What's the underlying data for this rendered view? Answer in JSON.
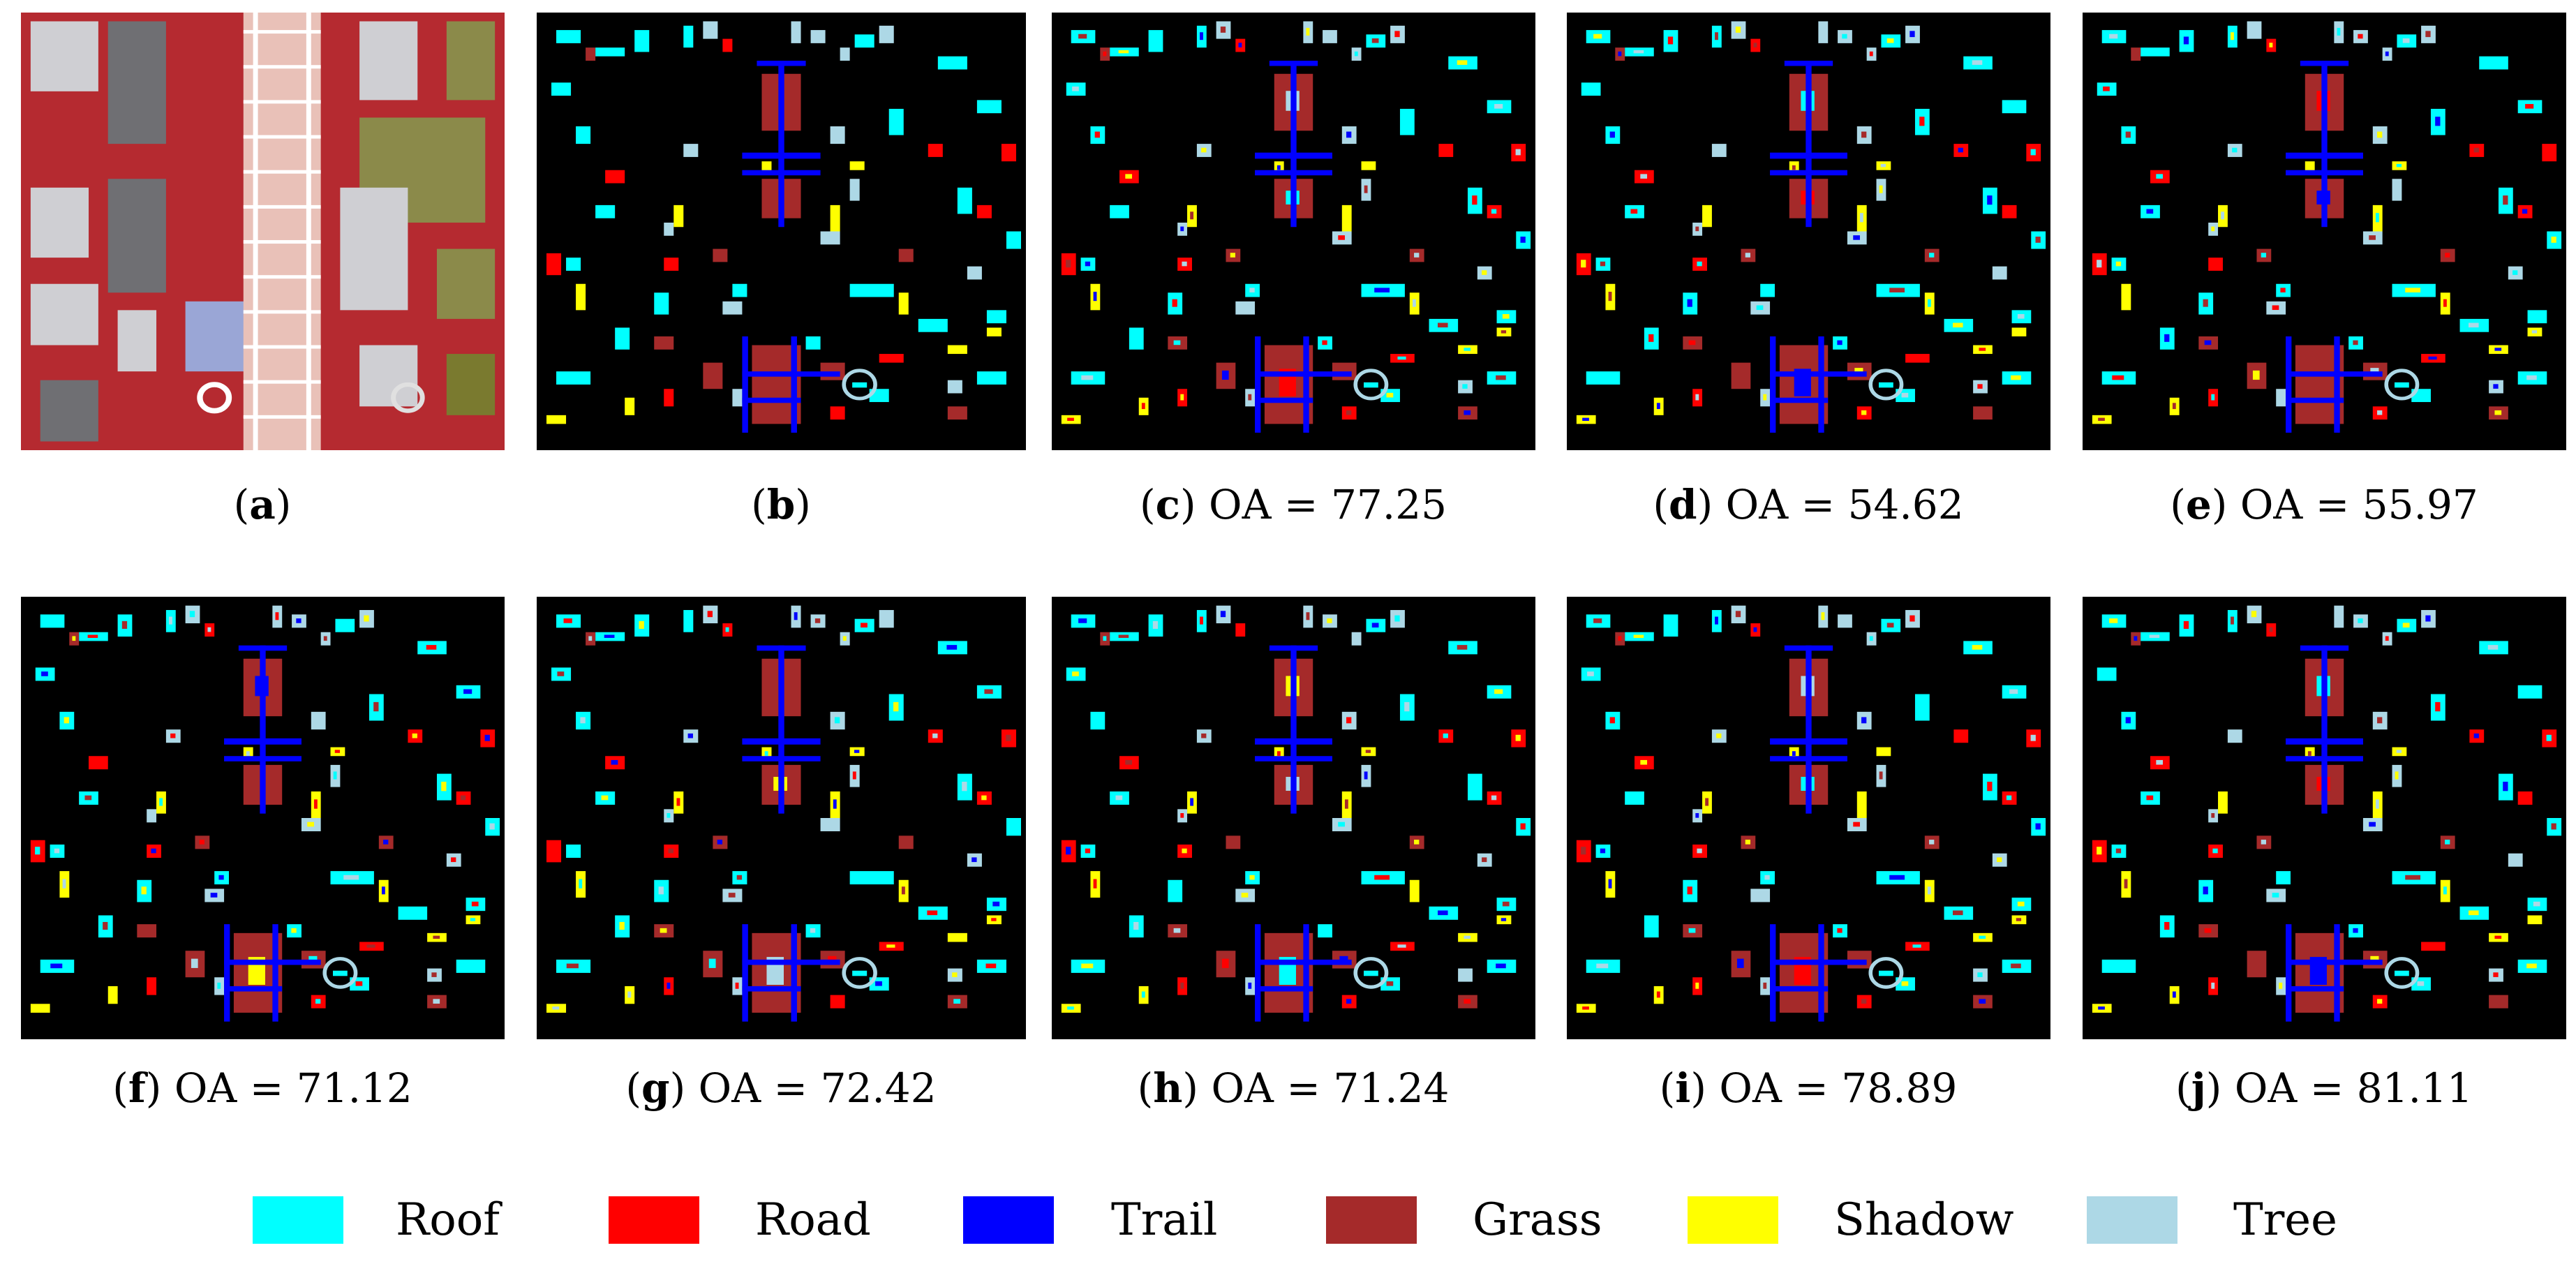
{
  "panels": [
    {
      "key": "a",
      "caption_letter": "a",
      "caption_text": "",
      "kind": "image"
    },
    {
      "key": "b",
      "caption_letter": "b",
      "caption_text": "",
      "kind": "map"
    },
    {
      "key": "c",
      "caption_letter": "c",
      "caption_text": "OA = 77.25",
      "kind": "map"
    },
    {
      "key": "d",
      "caption_letter": "d",
      "caption_text": "OA = 54.62",
      "kind": "map"
    },
    {
      "key": "e",
      "caption_letter": "e",
      "caption_text": "OA = 55.97",
      "kind": "map"
    },
    {
      "key": "f",
      "caption_letter": "f",
      "caption_text": "OA = 71.12",
      "kind": "map"
    },
    {
      "key": "g",
      "caption_letter": "g",
      "caption_text": "OA = 72.42",
      "kind": "map"
    },
    {
      "key": "h",
      "caption_letter": "h",
      "caption_text": "OA = 71.24",
      "kind": "map"
    },
    {
      "key": "i",
      "caption_letter": "i",
      "caption_text": "OA = 78.89",
      "kind": "map"
    },
    {
      "key": "j",
      "caption_letter": "j",
      "caption_text": "OA = 81.11",
      "kind": "map"
    }
  ],
  "legend": [
    {
      "label": "Roof",
      "color": "#00ffff"
    },
    {
      "label": "Road",
      "color": "#ff0000"
    },
    {
      "label": "Trail",
      "color": "#0000ff"
    },
    {
      "label": "Grass",
      "color": "#a52a2a"
    },
    {
      "label": "Shadow",
      "color": "#ffff00"
    },
    {
      "label": "Tree",
      "color": "#add8e6"
    }
  ]
}
